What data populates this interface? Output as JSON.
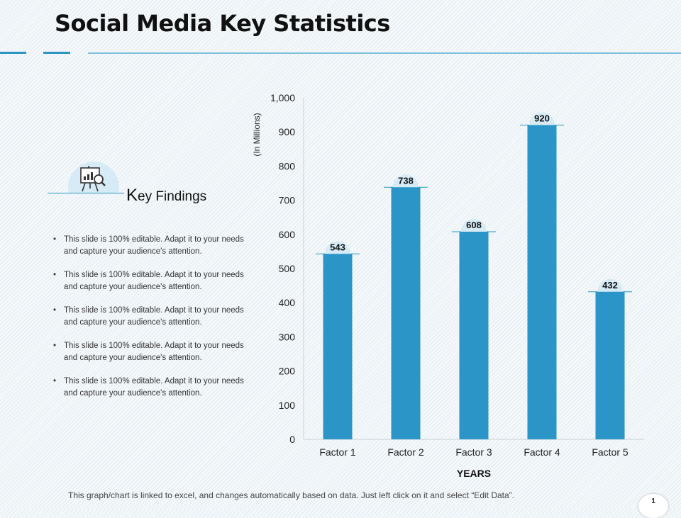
{
  "slide": {
    "title": "Social Media Key Statistics",
    "footer": "This graph/chart is linked to excel, and changes automatically based on data. Just left click on it and select “Edit Data”.",
    "page_number": "1"
  },
  "key_findings": {
    "title_initial": "K",
    "title_rest": "ey Findings",
    "icon": "presentation-chart-magnifier-icon",
    "bullets": [
      "This slide is 100% editable. Adapt it to your needs and capture your audience's attention.",
      "This slide is 100% editable. Adapt it to your needs and capture your audience's attention.",
      "This slide is 100% editable. Adapt it to your needs and capture your audience's attention.",
      "This slide is 100% editable. Adapt it to your needs and capture your audience's attention.",
      "This slide is 100% editable. Adapt it to your needs and capture your audience's attention."
    ]
  },
  "colors": {
    "bar": "#2a95c6",
    "accent": "#2e94c2",
    "label_bubble": "#d6ebf5"
  },
  "chart_data": {
    "type": "bar",
    "categories": [
      "Factor 1",
      "Factor 2",
      "Factor 3",
      "Factor 4",
      "Factor 5"
    ],
    "values": [
      543,
      738,
      608,
      920,
      432
    ],
    "data_labels": [
      "543",
      "738",
      "608",
      "920",
      "432"
    ],
    "xlabel": "YEARS",
    "ylabel": "(In Millions)",
    "ylim": [
      0,
      1000
    ],
    "yticks": [
      0,
      100,
      200,
      300,
      400,
      500,
      600,
      700,
      800,
      900,
      1000
    ],
    "ytick_labels": [
      "0",
      "100",
      "200",
      "300",
      "400",
      "500",
      "600",
      "700",
      "800",
      "900",
      "1,000"
    ],
    "grid": false,
    "legend": "none"
  }
}
